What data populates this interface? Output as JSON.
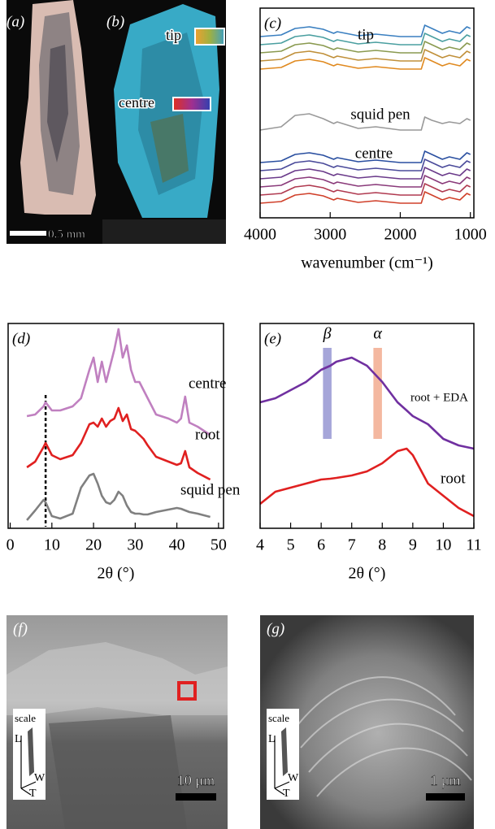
{
  "photos": [
    {
      "label": "(a)",
      "scale_bar": "0.5 mm"
    },
    {
      "label": "(b)",
      "tip": "tip",
      "centre": "centre"
    }
  ],
  "sem": [
    {
      "label": "(f)",
      "scale": "scale",
      "axes": [
        "L",
        "W",
        "T"
      ],
      "scale_bar": "10 μm"
    },
    {
      "label": "(g)",
      "scale": "scale",
      "axes": [
        "L",
        "W",
        "T"
      ],
      "scale_bar": "1 μm"
    }
  ],
  "chart_data": [
    {
      "type": "line",
      "panel_label": "(c)",
      "xlabel": "wavenumber (cm⁻¹)",
      "x": [
        4000,
        3700,
        3500,
        3300,
        3100,
        2950,
        2900,
        2600,
        2350,
        2000,
        1700,
        1650,
        1550,
        1400,
        1300,
        1150,
        1050,
        1000
      ],
      "xlim": [
        4000,
        950
      ],
      "ylim": [
        0,
        258
      ],
      "xticks": [
        4000,
        3000,
        2000,
        1000
      ],
      "annotations": [
        "tip",
        "centre"
      ],
      "series": [
        {
          "color": "#3a7fc0",
          "values": [
            223,
            225,
            233,
            235,
            232,
            227,
            229,
            224,
            226,
            223,
            223,
            237,
            233,
            227,
            230,
            227,
            235,
            233
          ]
        },
        {
          "color": "#4a9fa0",
          "values": [
            213,
            215,
            223,
            225,
            222,
            217,
            219,
            214,
            216,
            213,
            213,
            227,
            223,
            217,
            220,
            217,
            225,
            223
          ]
        },
        {
          "color": "#8a9a50",
          "values": [
            203,
            205,
            213,
            215,
            212,
            207,
            209,
            204,
            206,
            203,
            203,
            217,
            213,
            207,
            210,
            207,
            215,
            213
          ]
        },
        {
          "color": "#c0903a",
          "values": [
            193,
            195,
            203,
            205,
            202,
            197,
            199,
            194,
            196,
            193,
            193,
            207,
            203,
            197,
            200,
            197,
            205,
            203
          ]
        },
        {
          "color": "#e08a20",
          "values": [
            183,
            185,
            193,
            195,
            192,
            187,
            189,
            184,
            186,
            183,
            183,
            197,
            193,
            187,
            190,
            187,
            195,
            193
          ]
        },
        {
          "name": "squid pen",
          "color": "#999999",
          "values": [
            108,
            112,
            126,
            128,
            122,
            116,
            118,
            110,
            112,
            108,
            108,
            124,
            120,
            116,
            118,
            116,
            122,
            120
          ]
        },
        {
          "color": "#2a4fa0",
          "values": [
            68,
            70,
            78,
            80,
            77,
            72,
            74,
            69,
            71,
            68,
            68,
            82,
            78,
            72,
            75,
            72,
            80,
            78
          ]
        },
        {
          "color": "#4a4a9a",
          "values": [
            58,
            60,
            68,
            70,
            67,
            62,
            64,
            59,
            61,
            58,
            58,
            72,
            68,
            62,
            65,
            62,
            70,
            68
          ]
        },
        {
          "color": "#6a3a8a",
          "values": [
            48,
            50,
            58,
            60,
            57,
            52,
            54,
            49,
            51,
            48,
            48,
            62,
            58,
            52,
            55,
            52,
            60,
            58
          ]
        },
        {
          "color": "#8a3a7a",
          "values": [
            38,
            40,
            48,
            50,
            47,
            42,
            44,
            39,
            41,
            38,
            38,
            52,
            48,
            42,
            45,
            42,
            50,
            48
          ]
        },
        {
          "color": "#b03a50",
          "values": [
            28,
            30,
            38,
            40,
            37,
            32,
            34,
            29,
            31,
            28,
            28,
            42,
            38,
            32,
            35,
            32,
            40,
            38
          ]
        },
        {
          "color": "#d0402a",
          "values": [
            18,
            20,
            28,
            30,
            27,
            22,
            24,
            19,
            21,
            18,
            18,
            32,
            28,
            22,
            25,
            22,
            30,
            28
          ]
        }
      ]
    },
    {
      "type": "line",
      "panel_label": "(d)",
      "xlabel": "2θ (°)",
      "x": [
        4,
        6,
        8,
        8.5,
        10,
        12,
        15,
        17,
        19,
        20,
        21,
        22,
        23,
        24,
        25,
        26,
        27,
        28,
        29,
        30,
        31,
        32,
        33,
        35,
        38,
        40,
        41,
        42,
        43,
        45,
        48
      ],
      "xlim": [
        -0.5,
        51.2
      ],
      "ylim": [
        0,
        252
      ],
      "xticks": [
        0,
        10,
        20,
        30,
        40,
        50
      ],
      "reference_x": 8.5,
      "series": [
        {
          "name": "centre",
          "color": "#c080c0",
          "values": [
            138,
            140,
            150,
            155,
            145,
            145,
            150,
            160,
            195,
            210,
            180,
            205,
            180,
            200,
            220,
            245,
            210,
            225,
            195,
            180,
            180,
            170,
            160,
            140,
            135,
            130,
            135,
            162,
            130,
            125,
            115
          ]
        },
        {
          "name": "root",
          "color": "#e02020",
          "values": [
            75,
            82,
            100,
            105,
            90,
            85,
            90,
            105,
            128,
            130,
            125,
            135,
            125,
            132,
            135,
            148,
            132,
            140,
            122,
            120,
            115,
            110,
            102,
            88,
            82,
            78,
            80,
            95,
            75,
            68,
            60
          ]
        },
        {
          "name": "squid pen",
          "color": "#808080",
          "values": [
            10,
            22,
            35,
            32,
            15,
            12,
            18,
            50,
            65,
            67,
            55,
            40,
            32,
            30,
            35,
            45,
            40,
            28,
            20,
            18,
            18,
            17,
            17,
            20,
            23,
            25,
            24,
            22,
            20,
            18,
            14
          ]
        }
      ]
    },
    {
      "type": "line",
      "panel_label": "(e)",
      "xlabel": "2θ (°)",
      "x": [
        4,
        4.5,
        5,
        5.5,
        6,
        6.3,
        6.5,
        7,
        7.5,
        8,
        8.5,
        8.8,
        9,
        9.5,
        10,
        10.5,
        11
      ],
      "xlim": [
        4,
        11
      ],
      "ylim": [
        0,
        252
      ],
      "xticks": [
        4,
        5,
        6,
        7,
        8,
        9,
        10,
        11
      ],
      "bands": [
        {
          "label": "β",
          "x": 6.2,
          "color": "#8888cc"
        },
        {
          "label": "α",
          "x": 7.85,
          "color": "#f0a080"
        }
      ],
      "series": [
        {
          "name": "root + EDA",
          "color": "#7030a0",
          "values": [
            155,
            160,
            170,
            180,
            195,
            200,
            205,
            210,
            200,
            180,
            155,
            145,
            138,
            128,
            110,
            102,
            98
          ]
        },
        {
          "name": "root",
          "color": "#e02020",
          "values": [
            30,
            45,
            50,
            55,
            60,
            61,
            62,
            65,
            70,
            80,
            95,
            98,
            90,
            55,
            40,
            25,
            15
          ]
        }
      ]
    }
  ]
}
